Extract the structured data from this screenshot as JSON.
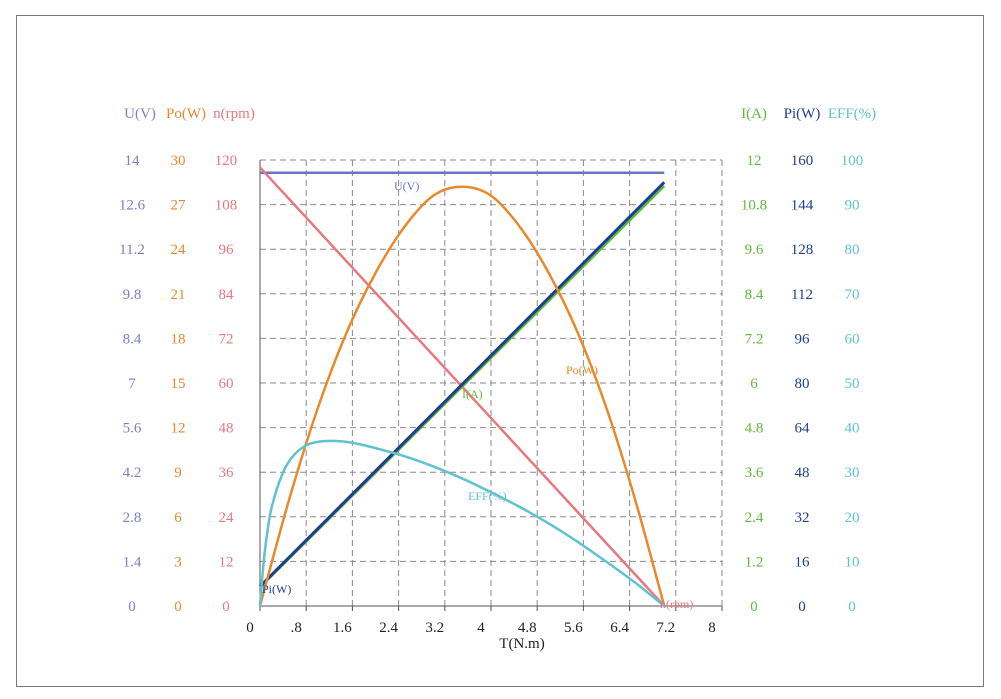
{
  "chart_data": {
    "type": "line",
    "xlabel": "T(N.m)",
    "x_ticks": [
      "0",
      ".8",
      "1.6",
      "2.4",
      "3.2",
      "4",
      "4.8",
      "5.6",
      "6.4",
      "7.2",
      "8"
    ],
    "xlim": [
      0,
      8
    ],
    "axes": [
      {
        "key": "U",
        "title": "U(V)",
        "side": "left",
        "color": "#7b7fc8",
        "ticks": [
          "0",
          "1.4",
          "2.8",
          "4.2",
          "5.6",
          "7",
          "8.4",
          "9.8",
          "11.2",
          "12.6",
          "14"
        ],
        "min": 0,
        "max": 14
      },
      {
        "key": "Po",
        "title": "Po(W)",
        "side": "left",
        "color": "#e8892a",
        "ticks": [
          "0",
          "3",
          "6",
          "9",
          "12",
          "15",
          "18",
          "21",
          "24",
          "27",
          "30"
        ],
        "min": 0,
        "max": 30
      },
      {
        "key": "n",
        "title": "n(rpm)",
        "side": "left",
        "color": "#e8787e",
        "ticks": [
          "0",
          "12",
          "24",
          "36",
          "48",
          "60",
          "72",
          "84",
          "96",
          "108",
          "120"
        ],
        "min": 0,
        "max": 120
      },
      {
        "key": "I",
        "title": "I(A)",
        "side": "right",
        "color": "#5fba3a",
        "ticks": [
          "0",
          "1.2",
          "2.4",
          "3.6",
          "4.8",
          "6",
          "7.2",
          "8.4",
          "9.6",
          "10.8",
          "12"
        ],
        "min": 0,
        "max": 12
      },
      {
        "key": "Pi",
        "title": "Pi(W)",
        "side": "right",
        "color": "#1f3f8c",
        "ticks": [
          "0",
          "16",
          "32",
          "48",
          "64",
          "80",
          "96",
          "112",
          "128",
          "144",
          "160"
        ],
        "min": 0,
        "max": 160
      },
      {
        "key": "EFF",
        "title": "EFF(%)",
        "side": "right",
        "color": "#5fc3cf",
        "ticks": [
          "0",
          "10",
          "20",
          "30",
          "40",
          "50",
          "60",
          "70",
          "80",
          "90",
          "100"
        ],
        "min": 0,
        "max": 100
      }
    ],
    "grid": true,
    "series": [
      {
        "name": "U(V)",
        "axis": "U",
        "color": "#6e72c8",
        "x": [
          0,
          7
        ],
        "values": [
          13.6,
          13.6
        ]
      },
      {
        "name": "n(rpm)",
        "axis": "n",
        "color": "#e8787e",
        "x": [
          0,
          7
        ],
        "values": [
          118,
          0
        ]
      },
      {
        "name": "I(A)",
        "axis": "I",
        "color": "#5fba3a",
        "x": [
          0,
          7
        ],
        "values": [
          0.5,
          11.3
        ]
      },
      {
        "name": "Pi(W)",
        "axis": "Pi",
        "color": "#1f3f8c",
        "x": [
          0,
          7
        ],
        "values": [
          7,
          152
        ]
      },
      {
        "name": "Po(W)",
        "axis": "Po",
        "color": "#e8892a",
        "x": [
          0,
          0.5,
          1,
          1.5,
          2,
          2.5,
          3,
          3.5,
          4,
          4.5,
          5,
          5.5,
          6,
          6.5,
          7
        ],
        "values": [
          0,
          7.1,
          13.3,
          18.4,
          22.4,
          25.5,
          27.6,
          28.2,
          27.6,
          25.5,
          22.4,
          18.4,
          13.3,
          7.1,
          0
        ]
      },
      {
        "name": "EFF(%)",
        "axis": "EFF",
        "color": "#5fc3cf",
        "x": [
          0,
          0.05,
          0.1,
          0.2,
          0.4,
          0.6,
          0.8,
          1.0,
          1.3,
          1.6,
          2.0,
          2.5,
          3.0,
          3.5,
          4.0,
          4.5,
          5.0,
          5.5,
          6.0,
          6.5,
          7.0
        ],
        "values": [
          0,
          8,
          14,
          22,
          30,
          34,
          36,
          36.8,
          37,
          36.6,
          35.4,
          33.6,
          31.3,
          28.6,
          25.5,
          22.2,
          18.5,
          14.4,
          9.9,
          5.2,
          0
        ]
      }
    ]
  }
}
